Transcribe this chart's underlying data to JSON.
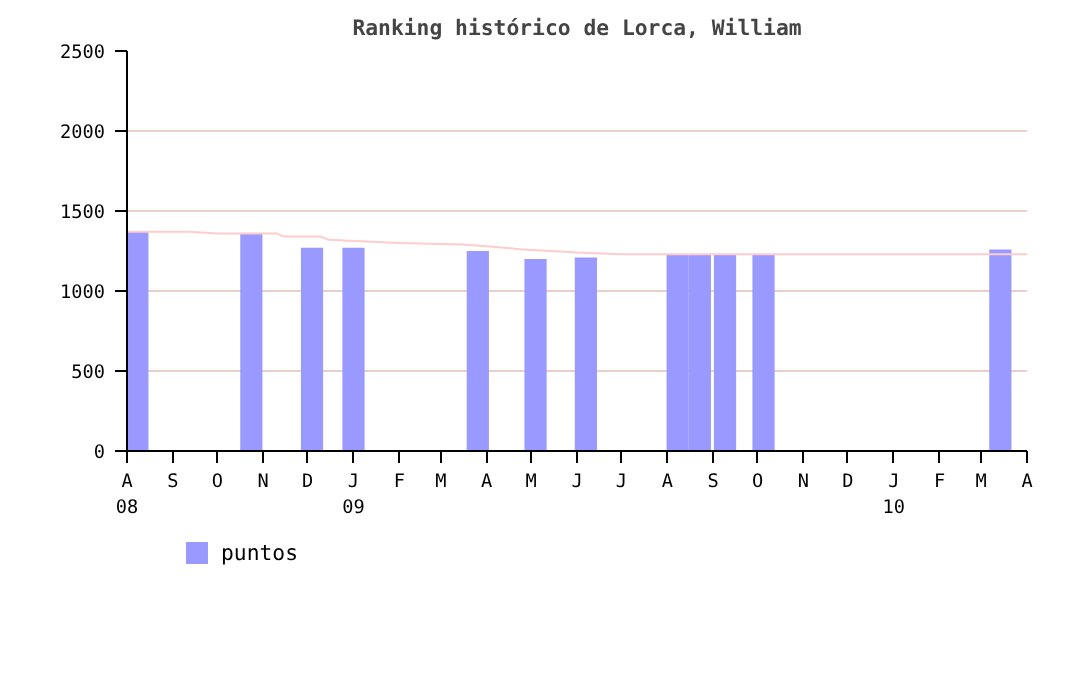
{
  "chart_data": {
    "type": "bar",
    "title": "Ranking histórico de Lorca, William",
    "series": [
      {
        "name": "puntos",
        "color": "#9999ff",
        "x": [
          "2008-08-08",
          "2008-10-24",
          "2008-12-04",
          "2009-01-01",
          "2009-03-26",
          "2009-05-04",
          "2009-06-07",
          "2009-08-08",
          "2009-08-23",
          "2009-09-09",
          "2009-10-05",
          "2010-03-14"
        ],
        "values": [
          1370,
          1360,
          1270,
          1270,
          1250,
          1200,
          1210,
          1230,
          1230,
          1230,
          1230,
          1260
        ]
      },
      {
        "type": "line",
        "color": "#ffcccc",
        "x": [
          "2008-08-01",
          "2008-09-12",
          "2008-10-01",
          "2008-11-10",
          "2008-11-15",
          "2008-12-10",
          "2008-12-15",
          "2009-02-01",
          "2009-03-15",
          "2009-04-01",
          "2009-04-25",
          "2009-05-15",
          "2009-06-01",
          "2009-07-01",
          "2010-04-01"
        ],
        "values": [
          1370,
          1370,
          1360,
          1360,
          1340,
          1340,
          1320,
          1300,
          1290,
          1280,
          1260,
          1250,
          1240,
          1230,
          1230
        ]
      }
    ],
    "xlim": [
      "2008-08-01",
      "2010-04-01"
    ],
    "xticks": [
      {
        "value": "2008-08",
        "label": "A\n08"
      },
      {
        "value": "2008-09",
        "label": "S"
      },
      {
        "value": "2008-10",
        "label": "O"
      },
      {
        "value": "2008-11",
        "label": "N"
      },
      {
        "value": "2008-12",
        "label": "D"
      },
      {
        "value": "2009-01",
        "label": "J\n09"
      },
      {
        "value": "2009-02",
        "label": "F"
      },
      {
        "value": "2009-03",
        "label": "M"
      },
      {
        "value": "2009-04",
        "label": "A"
      },
      {
        "value": "2009-05",
        "label": "M"
      },
      {
        "value": "2009-06",
        "label": "J"
      },
      {
        "value": "2009-07",
        "label": "J"
      },
      {
        "value": "2009-08",
        "label": "A"
      },
      {
        "value": "2009-09",
        "label": "S"
      },
      {
        "value": "2009-10",
        "label": "O"
      },
      {
        "value": "2009-11",
        "label": "N"
      },
      {
        "value": "2009-12",
        "label": "D"
      },
      {
        "value": "2010-01",
        "label": "J\n10"
      },
      {
        "value": "2010-02",
        "label": "F"
      },
      {
        "value": "2010-03",
        "label": "M"
      },
      {
        "value": "2010-04",
        "label": "A"
      }
    ],
    "ylim": [
      0,
      2500
    ],
    "yticks": [
      0,
      500,
      1000,
      1500,
      2000,
      2500
    ],
    "grid": "y",
    "legend": "bottom left"
  }
}
